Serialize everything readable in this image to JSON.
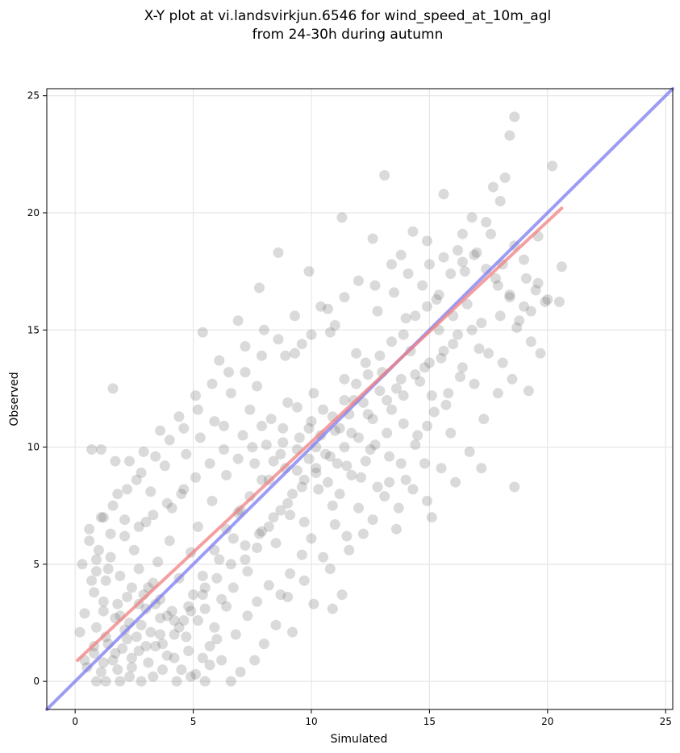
{
  "chart_data": {
    "type": "scatter",
    "title_line1": "X-Y plot at vi.landsvirkjun.6546 for wind_speed_at_10m_agl",
    "title_line2": "from 24-30h during autumn",
    "xlabel": "Simulated",
    "ylabel": "Observed",
    "xlim": [
      -1.2,
      25.3
    ],
    "ylim": [
      -1.2,
      25.3
    ],
    "xticks": [
      0,
      5,
      10,
      15,
      20,
      25
    ],
    "yticks": [
      0,
      5,
      10,
      15,
      20,
      25
    ],
    "grid": true,
    "colors": {
      "points": "#555555",
      "regression_line": "#f08080",
      "identity_line": "#7b7bf2"
    },
    "identity_line": {
      "x": [
        -1.2,
        25.3
      ],
      "y": [
        -1.2,
        25.3
      ]
    },
    "regression_line": {
      "x": [
        0.1,
        20.6
      ],
      "y": [
        0.9,
        20.2
      ]
    },
    "points": [
      [
        0.5,
        0.6
      ],
      [
        0.8,
        1.2
      ],
      [
        1.1,
        0.4
      ],
      [
        1.4,
        1.6
      ],
      [
        0.9,
        2.3
      ],
      [
        1.6,
        0.9
      ],
      [
        2.0,
        1.4
      ],
      [
        2.3,
        0.2
      ],
      [
        2.6,
        1.9
      ],
      [
        1.2,
        3.0
      ],
      [
        1.9,
        2.8
      ],
      [
        2.8,
        2.4
      ],
      [
        3.1,
        0.8
      ],
      [
        3.4,
        1.5
      ],
      [
        2.2,
        3.6
      ],
      [
        3.0,
        3.1
      ],
      [
        3.6,
        2.7
      ],
      [
        3.9,
        1.1
      ],
      [
        4.2,
        2.0
      ],
      [
        4.5,
        0.5
      ],
      [
        4.8,
        1.3
      ],
      [
        5.1,
        0.3
      ],
      [
        5.4,
        1.0
      ],
      [
        5.7,
        0.7
      ],
      [
        6.0,
        1.8
      ],
      [
        3.3,
        4.2
      ],
      [
        2.7,
        4.8
      ],
      [
        1.5,
        5.3
      ],
      [
        0.6,
        6.5
      ],
      [
        0.7,
        9.9
      ],
      [
        1.1,
        9.9
      ],
      [
        1.6,
        12.5
      ],
      [
        1.2,
        7.0
      ],
      [
        1.8,
        8.0
      ],
      [
        2.1,
        6.2
      ],
      [
        2.5,
        5.6
      ],
      [
        3.0,
        6.8
      ],
      [
        3.5,
        5.1
      ],
      [
        4.0,
        6.0
      ],
      [
        4.4,
        4.4
      ],
      [
        4.1,
        7.4
      ],
      [
        4.6,
        8.2
      ],
      [
        4.9,
        5.5
      ],
      [
        5.2,
        6.6
      ],
      [
        5.5,
        4.0
      ],
      [
        5.8,
        7.7
      ],
      [
        6.1,
        5.2
      ],
      [
        6.4,
        8.8
      ],
      [
        6.7,
        6.1
      ],
      [
        7.0,
        7.3
      ],
      [
        7.3,
        4.7
      ],
      [
        7.6,
        9.3
      ],
      [
        7.9,
        6.4
      ],
      [
        8.2,
        8.6
      ],
      [
        8.5,
        5.9
      ],
      [
        8.8,
        10.2
      ],
      [
        9.1,
        7.1
      ],
      [
        9.4,
        9.0
      ],
      [
        9.7,
        6.8
      ],
      [
        10.0,
        11.1
      ],
      [
        10.3,
        8.2
      ],
      [
        10.6,
        9.7
      ],
      [
        10.9,
        7.5
      ],
      [
        11.2,
        10.8
      ],
      [
        11.5,
        9.2
      ],
      [
        11.8,
        12.0
      ],
      [
        12.1,
        8.7
      ],
      [
        12.4,
        11.4
      ],
      [
        12.7,
        10.1
      ],
      [
        13.0,
        13.2
      ],
      [
        13.3,
        9.6
      ],
      [
        13.6,
        12.5
      ],
      [
        13.9,
        11.0
      ],
      [
        14.2,
        14.1
      ],
      [
        14.5,
        10.5
      ],
      [
        14.8,
        13.4
      ],
      [
        15.1,
        12.2
      ],
      [
        15.4,
        15.0
      ],
      [
        15.7,
        11.8
      ],
      [
        16.0,
        14.4
      ],
      [
        16.3,
        13.0
      ],
      [
        16.6,
        16.1
      ],
      [
        16.9,
        12.7
      ],
      [
        17.2,
        15.3
      ],
      [
        17.5,
        14.0
      ],
      [
        17.8,
        17.2
      ],
      [
        18.1,
        13.6
      ],
      [
        18.4,
        16.5
      ],
      [
        18.7,
        15.1
      ],
      [
        19.0,
        18.0
      ],
      [
        19.3,
        14.5
      ],
      [
        19.6,
        17.0
      ],
      [
        19.9,
        16.2
      ],
      [
        20.2,
        22.0
      ],
      [
        20.6,
        17.7
      ],
      [
        18.6,
        24.1
      ],
      [
        18.4,
        23.3
      ],
      [
        18.2,
        21.5
      ],
      [
        17.7,
        21.1
      ],
      [
        13.1,
        21.6
      ],
      [
        15.6,
        20.8
      ],
      [
        14.3,
        19.2
      ],
      [
        16.8,
        19.8
      ],
      [
        11.3,
        19.8
      ],
      [
        12.6,
        18.9
      ],
      [
        13.8,
        18.2
      ],
      [
        9.9,
        17.5
      ],
      [
        7.8,
        16.8
      ],
      [
        8.6,
        18.3
      ],
      [
        10.4,
        16.0
      ],
      [
        11.0,
        15.2
      ],
      [
        9.3,
        15.6
      ],
      [
        8.0,
        15.0
      ],
      [
        6.9,
        15.4
      ],
      [
        5.4,
        14.9
      ],
      [
        6.1,
        13.7
      ],
      [
        7.2,
        13.2
      ],
      [
        7.7,
        12.6
      ],
      [
        8.9,
        13.9
      ],
      [
        9.6,
        14.4
      ],
      [
        10.8,
        14.9
      ],
      [
        11.9,
        14.0
      ],
      [
        12.8,
        15.8
      ],
      [
        13.5,
        16.6
      ],
      [
        14.7,
        16.9
      ],
      [
        15.0,
        17.8
      ],
      [
        16.2,
        18.4
      ],
      [
        15.3,
        16.3
      ],
      [
        14.0,
        15.5
      ],
      [
        12.3,
        13.6
      ],
      [
        11.4,
        12.9
      ],
      [
        10.1,
        12.3
      ],
      [
        9.0,
        11.9
      ],
      [
        8.3,
        11.2
      ],
      [
        7.4,
        11.6
      ],
      [
        6.6,
        12.3
      ],
      [
        5.9,
        11.1
      ],
      [
        5.1,
        12.2
      ],
      [
        4.4,
        11.3
      ],
      [
        3.6,
        10.7
      ],
      [
        2.9,
        9.8
      ],
      [
        2.3,
        9.4
      ],
      [
        1.7,
        9.4
      ],
      [
        2.6,
        8.6
      ],
      [
        3.2,
        8.1
      ],
      [
        3.8,
        9.2
      ],
      [
        4.7,
        9.7
      ],
      [
        5.3,
        10.4
      ],
      [
        6.3,
        10.9
      ],
      [
        7.1,
        10.5
      ],
      [
        7.9,
        10.9
      ],
      [
        8.7,
        9.7
      ],
      [
        9.5,
        10.4
      ],
      [
        10.2,
        10.0
      ],
      [
        11.1,
        9.3
      ],
      [
        11.7,
        10.6
      ],
      [
        12.5,
        9.9
      ],
      [
        13.2,
        10.6
      ],
      [
        14.0,
        8.6
      ],
      [
        14.8,
        9.3
      ],
      [
        15.9,
        10.6
      ],
      [
        17.2,
        9.1
      ],
      [
        18.6,
        8.3
      ],
      [
        15.1,
        7.0
      ],
      [
        13.6,
        6.5
      ],
      [
        12.2,
        6.3
      ],
      [
        11.6,
        5.6
      ],
      [
        10.8,
        4.8
      ],
      [
        10.1,
        3.3
      ],
      [
        10.9,
        3.1
      ],
      [
        11.3,
        3.7
      ],
      [
        9.7,
        4.3
      ],
      [
        9.0,
        3.6
      ],
      [
        8.5,
        2.4
      ],
      [
        9.2,
        2.1
      ],
      [
        8.0,
        1.6
      ],
      [
        7.6,
        0.9
      ],
      [
        7.0,
        0.4
      ],
      [
        6.6,
        0.0
      ],
      [
        6.2,
        0.9
      ],
      [
        5.5,
        0.0
      ],
      [
        4.9,
        0.2
      ],
      [
        4.3,
        0.0
      ],
      [
        3.7,
        0.5
      ],
      [
        3.3,
        0.2
      ],
      [
        2.8,
        0.0
      ],
      [
        2.4,
        0.6
      ],
      [
        1.9,
        0.0
      ],
      [
        1.3,
        0.0
      ],
      [
        0.9,
        0.0
      ],
      [
        0.4,
        0.9
      ],
      [
        0.2,
        2.1
      ],
      [
        0.4,
        2.9
      ],
      [
        0.8,
        3.8
      ],
      [
        0.3,
        5.0
      ],
      [
        0.9,
        4.7
      ],
      [
        1.3,
        4.3
      ],
      [
        1.8,
        3.3
      ],
      [
        2.3,
        2.5
      ],
      [
        2.7,
        3.3
      ],
      [
        3.1,
        4.0
      ],
      [
        3.6,
        3.5
      ],
      [
        4.1,
        3.0
      ],
      [
        4.6,
        2.6
      ],
      [
        5.0,
        3.7
      ],
      [
        5.5,
        3.1
      ],
      [
        5.9,
        2.3
      ],
      [
        6.4,
        3.2
      ],
      [
        6.8,
        2.0
      ],
      [
        7.3,
        2.8
      ],
      [
        7.7,
        3.4
      ],
      [
        8.2,
        4.1
      ],
      [
        8.7,
        3.7
      ],
      [
        9.1,
        4.6
      ],
      [
        9.6,
        5.4
      ],
      [
        10.0,
        6.1
      ],
      [
        10.5,
        5.3
      ],
      [
        11.0,
        6.7
      ],
      [
        11.5,
        6.2
      ],
      [
        12.0,
        7.4
      ],
      [
        12.6,
        6.9
      ],
      [
        13.1,
        7.9
      ],
      [
        13.7,
        7.4
      ],
      [
        14.3,
        8.2
      ],
      [
        14.9,
        7.7
      ],
      [
        15.5,
        9.1
      ],
      [
        16.1,
        8.5
      ],
      [
        16.7,
        9.8
      ],
      [
        17.3,
        11.2
      ],
      [
        17.9,
        12.3
      ],
      [
        18.5,
        12.9
      ],
      [
        19.2,
        12.4
      ],
      [
        19.7,
        14.0
      ],
      [
        20.0,
        16.3
      ],
      [
        19.0,
        16.0
      ],
      [
        18.0,
        15.6
      ],
      [
        17.1,
        14.2
      ],
      [
        16.4,
        13.4
      ],
      [
        15.8,
        12.3
      ],
      [
        15.2,
        11.5
      ],
      [
        14.6,
        12.8
      ],
      [
        13.9,
        12.2
      ],
      [
        13.4,
        11.6
      ],
      [
        12.9,
        12.4
      ],
      [
        12.2,
        11.9
      ],
      [
        11.6,
        11.4
      ],
      [
        11.0,
        10.7
      ],
      [
        10.5,
        11.6
      ],
      [
        9.9,
        10.8
      ],
      [
        9.4,
        11.7
      ],
      [
        8.8,
        10.8
      ],
      [
        8.1,
        10.1
      ],
      [
        7.5,
        10.0
      ],
      [
        6.9,
        9.5
      ],
      [
        6.3,
        9.9
      ],
      [
        5.7,
        9.3
      ],
      [
        5.1,
        8.7
      ],
      [
        4.5,
        8.0
      ],
      [
        3.9,
        7.6
      ],
      [
        3.3,
        7.1
      ],
      [
        2.7,
        6.6
      ],
      [
        2.1,
        6.9
      ],
      [
        1.5,
        6.3
      ],
      [
        1.0,
        5.6
      ],
      [
        0.7,
        4.3
      ],
      [
        1.2,
        3.4
      ],
      [
        1.7,
        2.7
      ],
      [
        2.2,
        1.8
      ],
      [
        2.7,
        1.3
      ],
      [
        3.2,
        2.1
      ],
      [
        3.7,
        1.6
      ],
      [
        4.2,
        1.0
      ],
      [
        4.7,
        1.9
      ],
      [
        5.2,
        2.6
      ],
      [
        5.7,
        1.5
      ],
      [
        6.2,
        3.5
      ],
      [
        6.7,
        4.0
      ],
      [
        7.2,
        5.2
      ],
      [
        7.7,
        5.7
      ],
      [
        8.2,
        6.6
      ],
      [
        8.7,
        7.3
      ],
      [
        9.2,
        8.0
      ],
      [
        9.7,
        8.6
      ],
      [
        10.2,
        9.1
      ],
      [
        10.7,
        8.5
      ],
      [
        11.2,
        8.0
      ],
      [
        11.7,
        8.8
      ],
      [
        12.3,
        9.4
      ],
      [
        12.8,
        8.3
      ],
      [
        13.3,
        8.5
      ],
      [
        13.8,
        9.3
      ],
      [
        14.4,
        10.1
      ],
      [
        14.9,
        10.9
      ],
      [
        15.5,
        13.8
      ],
      [
        16.0,
        15.6
      ],
      [
        16.5,
        17.5
      ],
      [
        17.0,
        18.3
      ],
      [
        17.6,
        19.1
      ],
      [
        18.1,
        17.8
      ],
      [
        18.6,
        18.6
      ],
      [
        19.1,
        17.2
      ],
      [
        19.5,
        16.7
      ],
      [
        20.5,
        16.2
      ],
      [
        19.6,
        19.0
      ],
      [
        18.0,
        20.5
      ],
      [
        17.4,
        19.6
      ],
      [
        16.4,
        19.1
      ],
      [
        15.6,
        18.1
      ],
      [
        14.9,
        18.8
      ],
      [
        14.1,
        17.4
      ],
      [
        13.4,
        17.8
      ],
      [
        12.7,
        16.9
      ],
      [
        12.0,
        17.1
      ],
      [
        11.4,
        16.4
      ],
      [
        10.7,
        15.9
      ],
      [
        10.0,
        14.8
      ],
      [
        9.3,
        14.0
      ],
      [
        8.6,
        14.6
      ],
      [
        7.9,
        13.9
      ],
      [
        7.2,
        14.3
      ],
      [
        6.5,
        13.2
      ],
      [
        5.8,
        12.7
      ],
      [
        5.2,
        11.6
      ],
      [
        4.6,
        10.8
      ],
      [
        4.0,
        10.3
      ],
      [
        3.4,
        9.6
      ],
      [
        2.8,
        8.9
      ],
      [
        2.2,
        8.2
      ],
      [
        1.6,
        7.5
      ],
      [
        1.1,
        7.0
      ],
      [
        0.6,
        6.0
      ],
      [
        0.9,
        5.2
      ],
      [
        1.4,
        4.8
      ],
      [
        1.9,
        4.5
      ],
      [
        2.4,
        4.0
      ],
      [
        2.9,
        3.7
      ],
      [
        3.4,
        3.3
      ],
      [
        3.9,
        2.8
      ],
      [
        4.4,
        2.3
      ],
      [
        4.9,
        3.0
      ],
      [
        5.4,
        4.5
      ],
      [
        5.9,
        5.6
      ],
      [
        6.4,
        6.5
      ],
      [
        6.9,
        7.2
      ],
      [
        7.4,
        7.9
      ],
      [
        7.9,
        8.6
      ],
      [
        8.4,
        9.4
      ],
      [
        8.9,
        9.1
      ],
      [
        9.4,
        9.9
      ],
      [
        9.9,
        9.5
      ],
      [
        10.4,
        10.5
      ],
      [
        10.9,
        11.3
      ],
      [
        11.4,
        12.0
      ],
      [
        11.9,
        12.7
      ],
      [
        12.4,
        13.1
      ],
      [
        12.9,
        13.9
      ],
      [
        13.4,
        14.5
      ],
      [
        13.9,
        14.8
      ],
      [
        14.4,
        15.6
      ],
      [
        14.9,
        16.0
      ],
      [
        15.4,
        16.5
      ],
      [
        15.9,
        17.4
      ],
      [
        16.4,
        17.9
      ],
      [
        16.9,
        18.2
      ],
      [
        17.4,
        17.6
      ],
      [
        17.9,
        16.9
      ],
      [
        18.4,
        16.4
      ],
      [
        18.8,
        15.4
      ],
      [
        19.3,
        15.8
      ],
      [
        16.8,
        15.0
      ],
      [
        16.2,
        14.8
      ],
      [
        15.6,
        14.1
      ],
      [
        15.0,
        13.6
      ],
      [
        14.4,
        13.1
      ],
      [
        13.8,
        12.9
      ],
      [
        13.2,
        12.0
      ],
      [
        12.6,
        11.2
      ],
      [
        12.0,
        10.4
      ],
      [
        11.4,
        10.0
      ],
      [
        10.8,
        9.6
      ],
      [
        10.2,
        8.9
      ],
      [
        9.6,
        8.3
      ],
      [
        9.0,
        7.6
      ],
      [
        8.4,
        7.0
      ],
      [
        7.8,
        6.3
      ],
      [
        7.2,
        5.8
      ],
      [
        6.6,
        5.0
      ],
      [
        6.0,
        4.4
      ],
      [
        5.4,
        3.7
      ],
      [
        4.8,
        3.2
      ],
      [
        4.2,
        2.6
      ],
      [
        3.6,
        2.0
      ],
      [
        3.0,
        1.5
      ],
      [
        2.4,
        1.0
      ],
      [
        1.8,
        0.5
      ],
      [
        1.2,
        0.8
      ],
      [
        0.8,
        1.5
      ],
      [
        1.3,
        1.9
      ],
      [
        1.7,
        1.2
      ],
      [
        2.1,
        2.2
      ]
    ]
  }
}
